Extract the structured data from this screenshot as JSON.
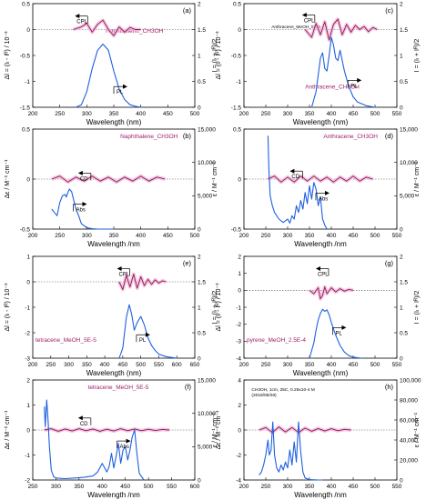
{
  "chart_data": [
    {
      "id": "a",
      "type": "line",
      "panel_label": "(a)",
      "xlabel": "Wavelength (nm)",
      "ylabel_left": "Δl = (Iₗ - Iᴿ) / 10⁻³",
      "ylabel_right": "I = (Iₗ + Iᴿ)/2",
      "xlim": [
        200,
        500
      ],
      "xticks": [
        200,
        250,
        300,
        350,
        400,
        450,
        500
      ],
      "ylim_left": [
        -1.5,
        0.5
      ],
      "yticks_left": [
        -1.5,
        -1.0,
        -0.5,
        0.0,
        0.5
      ],
      "ylim_right": [
        0.0,
        2.0
      ],
      "yticks_right": [
        0.0,
        0.5,
        1.0,
        1.5,
        2.0
      ],
      "sample_label": "Naphthalene_CH3OH",
      "arrow_labels": [
        {
          "text": "CPL",
          "dir": "left"
        },
        {
          "text": "PL",
          "dir": "right"
        }
      ],
      "series": [
        {
          "name": "CPL",
          "axis": "left",
          "x": [
            275,
            290,
            300,
            310,
            320,
            330,
            340,
            350,
            360,
            370,
            380,
            390,
            400
          ],
          "y": [
            0.0,
            0.05,
            0.12,
            -0.05,
            0.1,
            0.18,
            0.0,
            -0.12,
            0.05,
            -0.05,
            0.04,
            0.0,
            0.0
          ]
        },
        {
          "name": "PL",
          "axis": "right",
          "x": [
            280,
            290,
            300,
            310,
            320,
            330,
            340,
            350,
            360,
            370,
            380,
            390,
            400
          ],
          "y": [
            0.0,
            0.05,
            0.3,
            0.75,
            1.1,
            1.22,
            1.1,
            0.7,
            0.35,
            0.15,
            0.05,
            0.02,
            0.0
          ]
        }
      ]
    },
    {
      "id": "c",
      "type": "line",
      "panel_label": "(c)",
      "xlabel": "Wavelength (nm)",
      "ylabel_left": "Δl = (Iₗ - Iᴿ) / 10⁻³",
      "ylabel_right": "I = (Iₗ + Iᴿ)/2",
      "xlim": [
        200,
        550
      ],
      "xticks": [
        200,
        250,
        300,
        350,
        400,
        450,
        500,
        550
      ],
      "ylim_left": [
        -1.5,
        0.5
      ],
      "yticks_left": [
        -1.5,
        -1.0,
        -0.5,
        0.0,
        0.5
      ],
      "ylim_right": [
        0.0,
        2.0
      ],
      "yticks_right": [
        0.0,
        0.5,
        1.0,
        1.5,
        2.0
      ],
      "sample_label": "Anthracene_CH3OH",
      "top_note": "Anthracene_MeOH_5E-5",
      "arrow_labels": [
        {
          "text": "CPL",
          "dir": "left"
        },
        {
          "text": "PL",
          "dir": "right"
        }
      ],
      "series": [
        {
          "name": "CPL",
          "axis": "left",
          "x": [
            340,
            355,
            365,
            375,
            385,
            395,
            405,
            415,
            425,
            435,
            445,
            455,
            465,
            475,
            485,
            495,
            505
          ],
          "y": [
            0.0,
            -0.15,
            0.12,
            -0.1,
            0.15,
            -0.2,
            0.1,
            0.2,
            -0.1,
            0.1,
            -0.05,
            0.08,
            0.0,
            0.06,
            -0.04,
            0.04,
            0.0
          ]
        },
        {
          "name": "PL",
          "axis": "right",
          "x": [
            355,
            365,
            375,
            380,
            385,
            390,
            395,
            400,
            405,
            410,
            415,
            420,
            425,
            430,
            440,
            450,
            460,
            480,
            500
          ],
          "y": [
            0.0,
            0.3,
            0.95,
            1.05,
            0.75,
            0.7,
            1.0,
            1.35,
            1.2,
            0.95,
            0.9,
            1.1,
            0.9,
            0.7,
            0.4,
            0.2,
            0.1,
            0.03,
            0.0
          ]
        }
      ]
    },
    {
      "id": "b",
      "type": "line",
      "panel_label": "(b)",
      "xlabel": "Wavelength /nm",
      "ylabel_left": "Δε / M⁻¹ cm⁻¹",
      "ylabel_right": "ε / M⁻¹ cm⁻¹",
      "xlim": [
        200,
        500
      ],
      "xticks": [
        200,
        250,
        300,
        350,
        400,
        450,
        500
      ],
      "ylim_left": [
        -0.5,
        0.5
      ],
      "yticks_left": [
        -0.5,
        0.0,
        0.5
      ],
      "ylim_right": [
        0,
        15000
      ],
      "yticks_right": [
        0,
        5000,
        10000,
        15000
      ],
      "sample_label": "Naphthalene_CH3OH",
      "arrow_labels": [
        {
          "text": "CD",
          "dir": "left"
        },
        {
          "text": "Abs",
          "dir": "right"
        }
      ],
      "series": [
        {
          "name": "CD",
          "axis": "left",
          "x": [
            235,
            250,
            265,
            280,
            295,
            310,
            325,
            340,
            355,
            370,
            385,
            400,
            415,
            430,
            445
          ],
          "y": [
            0.0,
            0.03,
            -0.03,
            0.02,
            -0.02,
            0.03,
            -0.02,
            0.02,
            -0.03,
            0.02,
            -0.02,
            0.03,
            -0.02,
            0.02,
            0.0
          ]
        },
        {
          "name": "Abs",
          "axis": "right",
          "x": [
            235,
            240,
            245,
            250,
            255,
            260,
            262,
            265,
            268,
            272,
            275,
            280,
            285,
            290,
            300,
            310,
            320,
            330,
            350
          ],
          "y": [
            3000,
            2500,
            2000,
            4000,
            5000,
            5200,
            4800,
            5500,
            6000,
            5600,
            4600,
            3000,
            2000,
            800,
            200,
            50,
            0,
            0,
            0
          ]
        }
      ]
    },
    {
      "id": "d",
      "type": "line",
      "panel_label": "(d)",
      "xlabel": "Wavelength /nm",
      "ylabel_left": "",
      "ylabel_right": "ε / M⁻¹ cm⁻¹",
      "xlim": [
        200,
        550
      ],
      "xticks": [
        200,
        250,
        300,
        350,
        400,
        450,
        500,
        550
      ],
      "ylim_left": [
        -0.5,
        0.5
      ],
      "yticks_left": [
        -0.5,
        0.0,
        0.5
      ],
      "ylim_right": [
        0,
        15000
      ],
      "yticks_right": [
        0,
        5000,
        10000,
        15000
      ],
      "sample_label": "Anthracene_CH3OH",
      "arrow_labels": [
        {
          "text": "CD",
          "dir": "left"
        },
        {
          "text": "Abs",
          "dir": "right"
        }
      ],
      "series": [
        {
          "name": "CD",
          "axis": "left",
          "x": [
            255,
            270,
            285,
            300,
            315,
            330,
            345,
            360,
            375,
            390,
            405,
            420,
            435,
            450,
            465,
            480,
            495
          ],
          "y": [
            0.0,
            0.03,
            -0.03,
            0.02,
            -0.03,
            0.03,
            -0.02,
            0.03,
            -0.02,
            0.02,
            -0.03,
            0.02,
            -0.02,
            0.03,
            -0.02,
            0.02,
            0.0
          ]
        },
        {
          "name": "Abs",
          "axis": "right",
          "x": [
            255,
            257,
            260,
            265,
            270,
            280,
            290,
            300,
            305,
            310,
            315,
            320,
            325,
            330,
            335,
            340,
            345,
            350,
            355,
            360,
            365,
            370,
            375,
            380,
            385,
            390
          ],
          "y": [
            14000,
            9000,
            5000,
            3500,
            2500,
            1500,
            1000,
            1500,
            900,
            2000,
            1500,
            3500,
            2500,
            4300,
            3000,
            5500,
            3800,
            6500,
            4500,
            7000,
            6000,
            3500,
            4800,
            1500,
            600,
            0
          ]
        }
      ]
    },
    {
      "id": "e",
      "type": "line",
      "panel_label": "(e)",
      "xlabel": "Wavelength (nm)",
      "ylabel_left": "Δl = (Iₗ - Iᴿ) / 10⁻³",
      "ylabel_right": "I = (Iₗ + Iᴿ)/2",
      "xlim": [
        200,
        650
      ],
      "xticks": [
        200,
        250,
        300,
        350,
        400,
        450,
        500,
        550,
        600,
        650
      ],
      "ylim_left": [
        -3,
        1
      ],
      "yticks_left": [
        -3,
        -2,
        -1,
        0,
        1
      ],
      "ylim_right": [
        0.0,
        2.0
      ],
      "yticks_right": [
        0.0,
        0.5,
        1.0,
        1.5,
        2.0
      ],
      "sample_label": "tetracene_MeOH_5E-5",
      "arrow_labels": [
        {
          "text": "CPL",
          "dir": "left"
        },
        {
          "text": "PL",
          "dir": "right"
        }
      ],
      "series": [
        {
          "name": "CPL",
          "axis": "left",
          "x": [
            440,
            450,
            460,
            470,
            480,
            490,
            500,
            510,
            520,
            530,
            540,
            550,
            560,
            570
          ],
          "y": [
            0.0,
            -0.3,
            0.25,
            -0.2,
            0.3,
            -0.25,
            0.2,
            -0.15,
            0.1,
            -0.1,
            0.08,
            -0.05,
            0.04,
            0.0
          ]
        },
        {
          "name": "PL",
          "axis": "right",
          "x": [
            440,
            450,
            460,
            468,
            475,
            482,
            490,
            500,
            510,
            520,
            530,
            540,
            550,
            570,
            600
          ],
          "y": [
            0.0,
            0.2,
            0.8,
            1.05,
            0.85,
            0.55,
            0.7,
            0.82,
            0.65,
            0.4,
            0.25,
            0.15,
            0.08,
            0.03,
            0.0
          ]
        }
      ]
    },
    {
      "id": "g",
      "type": "line",
      "panel_label": "(g)",
      "xlabel": "Wavelength (nm)",
      "ylabel_left": "Δl = (Iₗ - Iᴿ) / 10⁻³",
      "ylabel_right": "I = (Iₗ + Iᴿ)/2",
      "xlim": [
        200,
        550
      ],
      "xticks": [
        200,
        250,
        300,
        350,
        400,
        450,
        500,
        550
      ],
      "ylim_left": [
        -4,
        2
      ],
      "yticks_left": [
        -4,
        -3,
        -2,
        -1,
        0,
        1,
        2
      ],
      "ylim_right": [
        0.0,
        2.0
      ],
      "yticks_right": [
        0.0,
        0.5,
        1.0,
        1.5,
        2.0
      ],
      "sample_label": "pyrene_MeOH_2.5E-4",
      "arrow_labels": [
        {
          "text": "CPL",
          "dir": "left"
        },
        {
          "text": "PL",
          "dir": "right"
        }
      ],
      "series": [
        {
          "name": "CPL",
          "axis": "left",
          "x": [
            350,
            360,
            370,
            375,
            380,
            385,
            390,
            400,
            410,
            420,
            430,
            440,
            450
          ],
          "y": [
            0.0,
            -0.2,
            0.15,
            -0.5,
            -0.3,
            0.2,
            -0.2,
            0.15,
            -0.1,
            0.1,
            -0.05,
            0.05,
            0.0
          ]
        },
        {
          "name": "PL",
          "axis": "right",
          "x": [
            350,
            360,
            365,
            370,
            375,
            380,
            385,
            390,
            395,
            400,
            410,
            420,
            430,
            440,
            450,
            470
          ],
          "y": [
            0.0,
            0.3,
            0.55,
            0.75,
            0.88,
            0.96,
            0.92,
            0.95,
            0.85,
            0.7,
            0.45,
            0.25,
            0.12,
            0.05,
            0.02,
            0.0
          ]
        }
      ]
    },
    {
      "id": "f",
      "type": "line",
      "panel_label": "(f)",
      "xlabel": "Wavelength /nm",
      "ylabel_left": "Δε / M⁻¹ cm⁻¹",
      "ylabel_right": "ε / M⁻¹ cm⁻¹",
      "xlim": [
        250,
        600
      ],
      "xticks": [
        250,
        300,
        350,
        400,
        450,
        500,
        550,
        600
      ],
      "ylim_left": [
        -2,
        2
      ],
      "yticks_left": [
        -2,
        -1,
        0,
        1,
        2
      ],
      "ylim_right": [
        0,
        15000
      ],
      "yticks_right": [
        0,
        5000,
        10000,
        15000
      ],
      "sample_label": "tetracene_MeOH_5E-5",
      "arrow_labels": [
        {
          "text": "CD",
          "dir": "left"
        },
        {
          "text": "Abs",
          "dir": "right"
        }
      ],
      "series": [
        {
          "name": "CD",
          "axis": "left",
          "x": [
            275,
            290,
            305,
            320,
            335,
            350,
            365,
            380,
            395,
            410,
            425,
            440,
            455,
            470,
            485,
            500,
            515,
            530,
            545
          ],
          "y": [
            0.0,
            0.05,
            -0.05,
            0.04,
            -0.04,
            0.05,
            -0.03,
            0.04,
            -0.05,
            0.03,
            -0.04,
            0.05,
            -0.03,
            0.04,
            -0.03,
            0.03,
            -0.02,
            0.02,
            0.0
          ]
        },
        {
          "name": "Abs",
          "axis": "right",
          "x": [
            275,
            277,
            280,
            283,
            286,
            290,
            295,
            300,
            320,
            340,
            360,
            380,
            390,
            400,
            410,
            415,
            420,
            425,
            430,
            435,
            440,
            445,
            450,
            455,
            460,
            465,
            470,
            475,
            480,
            490
          ],
          "y": [
            11000,
            8000,
            12000,
            9000,
            5000,
            1500,
            500,
            300,
            200,
            300,
            400,
            600,
            1200,
            2500,
            1200,
            2000,
            4000,
            1800,
            3500,
            5500,
            2500,
            4500,
            5000,
            3000,
            4500,
            6500,
            7500,
            4000,
            1000,
            0
          ]
        }
      ]
    },
    {
      "id": "h",
      "type": "line",
      "panel_label": "(h)",
      "xlabel": "Wavelength /nm",
      "ylabel_left": "Δε / M⁻¹ cm⁻¹",
      "ylabel_right": "ε / M⁻¹ cm⁻¹",
      "xlim": [
        200,
        550
      ],
      "xticks": [
        200,
        250,
        300,
        350,
        400,
        450,
        500,
        550
      ],
      "ylim_left": [
        -4,
        4
      ],
      "yticks_left": [
        -4,
        -2,
        0,
        2,
        4
      ],
      "ylim_right": [
        0,
        100000
      ],
      "yticks_right": [
        0,
        20000,
        40000,
        60000,
        80000,
        100000
      ],
      "top_note": "CH3OH, 1cm, 25C, 0.25x10-4 M",
      "top_note_2": "(2018/05/28)",
      "series": [
        {
          "name": "CD",
          "axis": "left",
          "x": [
            235,
            250,
            265,
            280,
            295,
            310,
            325,
            340,
            355,
            370,
            385,
            400,
            415,
            430,
            445
          ],
          "y": [
            0.0,
            0.2,
            -0.2,
            0.25,
            -0.15,
            0.2,
            -0.2,
            0.15,
            -0.1,
            0.12,
            -0.08,
            0.1,
            -0.06,
            0.05,
            0.0
          ]
        },
        {
          "name": "Abs",
          "axis": "right",
          "x": [
            235,
            240,
            245,
            250,
            255,
            258,
            262,
            266,
            270,
            275,
            280,
            285,
            290,
            295,
            300,
            305,
            310,
            315,
            320,
            325,
            330,
            335,
            340,
            350,
            360,
            370,
            380
          ],
          "y": [
            5000,
            8000,
            15000,
            25000,
            40000,
            25000,
            30000,
            58000,
            25000,
            12000,
            8000,
            15000,
            10000,
            18000,
            12000,
            30000,
            15000,
            38000,
            18000,
            58000,
            28000,
            8000,
            2000,
            500,
            200,
            0,
            0
          ]
        }
      ]
    }
  ]
}
